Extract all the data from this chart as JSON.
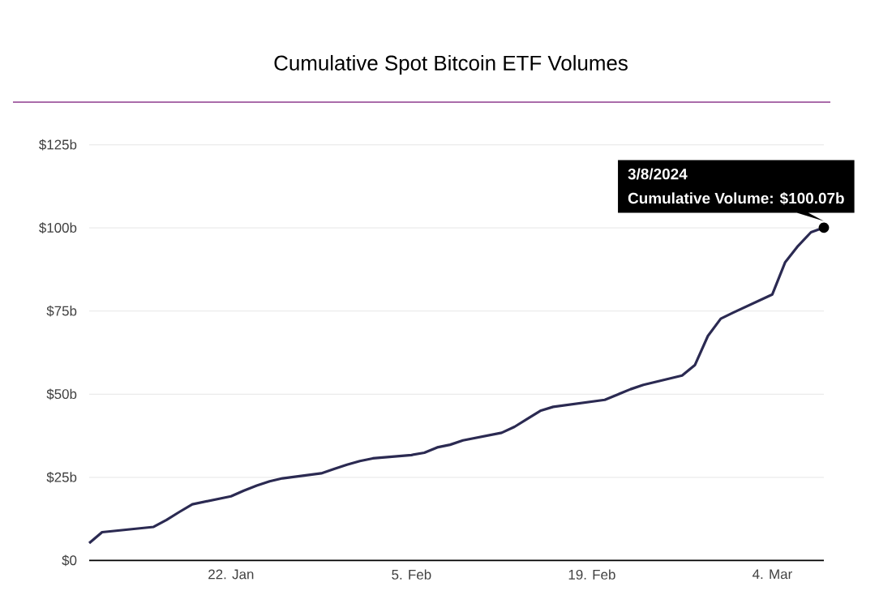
{
  "chart_data": {
    "type": "line",
    "title": "Cumulative Spot Bitcoin ETF Volumes",
    "x": [
      "2024-01-11",
      "2024-01-12",
      "2024-01-16",
      "2024-01-17",
      "2024-01-18",
      "2024-01-19",
      "2024-01-22",
      "2024-01-23",
      "2024-01-24",
      "2024-01-25",
      "2024-01-26",
      "2024-01-29",
      "2024-01-30",
      "2024-01-31",
      "2024-02-01",
      "2024-02-02",
      "2024-02-05",
      "2024-02-06",
      "2024-02-07",
      "2024-02-08",
      "2024-02-09",
      "2024-02-12",
      "2024-02-13",
      "2024-02-14",
      "2024-02-15",
      "2024-02-16",
      "2024-02-20",
      "2024-02-21",
      "2024-02-22",
      "2024-02-23",
      "2024-02-26",
      "2024-02-27",
      "2024-02-28",
      "2024-02-29",
      "2024-03-01",
      "2024-03-04",
      "2024-03-05",
      "2024-03-06",
      "2024-03-07",
      "2024-03-08"
    ],
    "series": [
      {
        "color": "#2b2a52",
        "values": [
          5.2,
          8.5,
          10.1,
          12.2,
          14.6,
          16.9,
          19.3,
          21.0,
          22.5,
          23.8,
          24.7,
          26.2,
          27.5,
          28.8,
          29.9,
          30.7,
          31.7,
          32.4,
          34.0,
          34.8,
          36.1,
          38.4,
          40.2,
          42.6,
          45.0,
          46.2,
          48.3,
          49.9,
          51.5,
          52.8,
          55.6,
          58.8,
          67.5,
          72.7,
          74.6,
          80.0,
          89.7,
          94.6,
          98.7,
          100.07
        ]
      }
    ],
    "xlim": [
      "2024-01-11",
      "2024-03-08"
    ],
    "xticks": [
      {
        "value": "2024-01-22",
        "label": "22. Jan"
      },
      {
        "value": "2024-02-05",
        "label": "5. Feb"
      },
      {
        "value": "2024-02-19",
        "label": "19. Feb"
      },
      {
        "value": "2024-03-04",
        "label": "4. Mar"
      }
    ],
    "ylim": [
      0,
      125
    ],
    "yticks": [
      {
        "value": 0,
        "label": "$0"
      },
      {
        "value": 25,
        "label": "$25b"
      },
      {
        "value": 50,
        "label": "$50b"
      },
      {
        "value": 75,
        "label": "$75b"
      },
      {
        "value": 100,
        "label": "$100b"
      },
      {
        "value": 125,
        "label": "$125b"
      }
    ],
    "grid": "y",
    "annotations": [
      "3/8/2024",
      "Cumulative Volume: $100.07b"
    ]
  }
}
